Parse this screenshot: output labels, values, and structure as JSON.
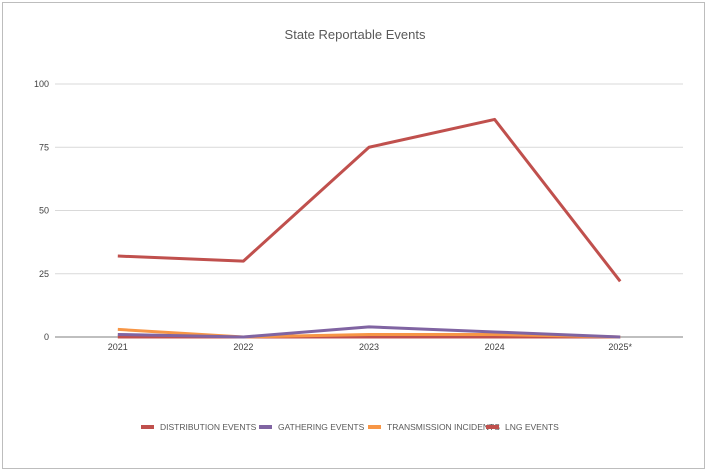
{
  "chart_data": {
    "type": "line",
    "title": "State Reportable Events",
    "categories": [
      "2021",
      "2022",
      "2023",
      "2024",
      "2025*"
    ],
    "ylim": [
      0,
      100
    ],
    "yticks": [
      0,
      25,
      50,
      75,
      100
    ],
    "grid": true,
    "legend": "bottom",
    "series": [
      {
        "name": "DISTRIBUTION EVENTS",
        "color": "#c0504d",
        "values": [
          32,
          30,
          75,
          86,
          22
        ]
      },
      {
        "name": "GATHERING EVENTS",
        "color": "#8064a2",
        "values": [
          1,
          0,
          4,
          2,
          0
        ]
      },
      {
        "name": "TRANSMISSION INCIDENTS",
        "color": "#f79646",
        "values": [
          3,
          0,
          1,
          1,
          0
        ]
      },
      {
        "name": "LNG EVENTS",
        "color": "#c0504d",
        "values": [
          0,
          0,
          0,
          0,
          0
        ]
      }
    ]
  }
}
